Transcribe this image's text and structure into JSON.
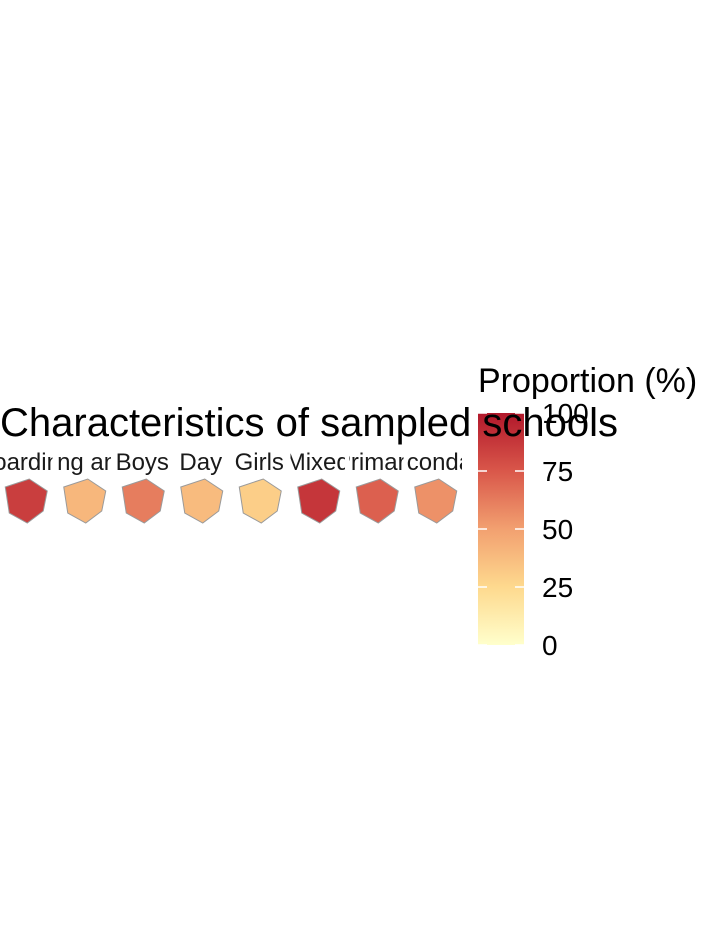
{
  "chart_data": {
    "type": "heatmap",
    "title": "Characteristics of sampled schools",
    "panels": [
      "Boarding",
      "Boarding and Day",
      "Boys",
      "Day",
      "Girls",
      "Mixed",
      "Primary",
      "Secondary"
    ],
    "legend": {
      "title": "Proportion (%)",
      "min": 0,
      "max": 100,
      "ticks": [
        0,
        25,
        50,
        75,
        100
      ],
      "placement": "right",
      "colors": [
        "#ffffcc",
        "#fed976",
        "#fd8d3c",
        "#e31a1c",
        "#b2182b"
      ]
    },
    "panel_values": [
      85,
      40,
      62,
      38,
      30,
      88,
      72,
      55
    ]
  }
}
